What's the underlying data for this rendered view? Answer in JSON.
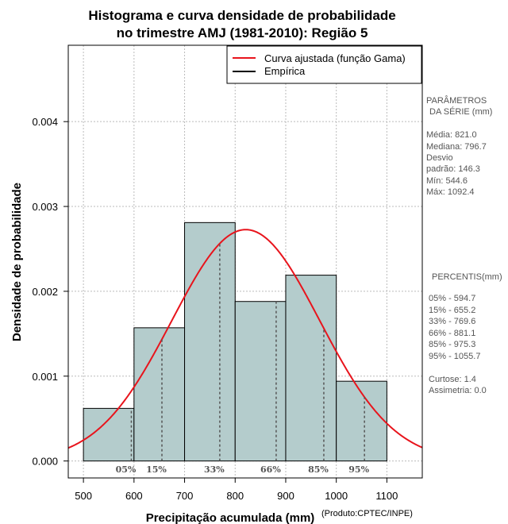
{
  "chart_data": {
    "type": "bar",
    "title": "Histograma e curva densidade de probabilidade",
    "subtitle": "no trimestre AMJ (1981-2010): Região 5",
    "xlabel": "Precipitação acumulada (mm)",
    "ylabel": "Densidade de probabilidade",
    "credit": "(Produto:CPTEC/INPE)",
    "xlim": [
      470,
      1170
    ],
    "ylim": [
      -0.0002,
      0.0049
    ],
    "x_ticks": [
      500,
      600,
      700,
      800,
      900,
      1000,
      1100
    ],
    "x_tick_labels": [
      "500",
      "600",
      "700",
      "800",
      "900",
      "1000",
      "1100"
    ],
    "y_ticks": [
      0.0,
      0.001,
      0.002,
      0.003,
      0.004
    ],
    "y_tick_labels": [
      "0.000",
      "0.001",
      "0.002",
      "0.003",
      "0.004"
    ],
    "grid": true,
    "bins": [
      {
        "start": 500,
        "end": 600,
        "density": 0.00062
      },
      {
        "start": 600,
        "end": 700,
        "density": 0.00157
      },
      {
        "start": 700,
        "end": 800,
        "density": 0.00281
      },
      {
        "start": 800,
        "end": 900,
        "density": 0.00188
      },
      {
        "start": 900,
        "end": 1000,
        "density": 0.00219
      },
      {
        "start": 1000,
        "end": 1100,
        "density": 0.00094
      }
    ],
    "fitted_curve": {
      "name": "Curva ajustada (função Gama)",
      "mean": 821.0,
      "sd": 146.3,
      "color": "#e8141c"
    },
    "empirical": {
      "name": "Empírica",
      "color": "#000000"
    },
    "bar_fill": "#b4cccc",
    "percentiles": [
      {
        "label": "05%",
        "value": 594.7
      },
      {
        "label": "15%",
        "value": 655.2
      },
      {
        "label": "33%",
        "value": 769.6
      },
      {
        "label": "66%",
        "value": 881.1
      },
      {
        "label": "85%",
        "value": 975.3
      },
      {
        "label": "95%",
        "value": 1055.7
      }
    ],
    "legend_position": "top-right"
  },
  "side_panel": {
    "params_title_1": "PARÂMETROS",
    "params_title_2": "DA SÉRIE (mm)",
    "media": "Média:  821.0",
    "mediana": "Mediana:  796.7",
    "desvio_1": "Desvio",
    "desvio_2": "padrão:  146.3",
    "min": "Mín:  544.6",
    "max": "Máx:  1092.4",
    "percentis_title": "PERCENTIS(mm)",
    "p05": "05% -  594.7",
    "p15": "15% -  655.2",
    "p33": "33% -  769.6",
    "p66": "66% -  881.1",
    "p85": "85% -  975.3",
    "p95": "95% -  1055.7",
    "curtose": "Curtose:  1.4",
    "assimetria": "Assimetria:  0.0"
  }
}
